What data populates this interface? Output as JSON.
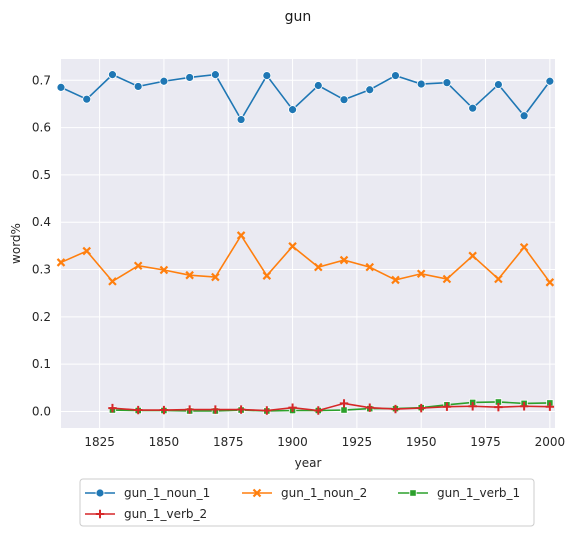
{
  "chart_data": {
    "type": "line",
    "title": "gun",
    "xlabel": "year",
    "ylabel": "word%",
    "xlim": [
      1810,
      2002
    ],
    "ylim": [
      -0.035,
      0.745
    ],
    "x_ticks": [
      1825,
      1850,
      1875,
      1900,
      1925,
      1950,
      1975,
      2000
    ],
    "y_ticks": [
      0.0,
      0.1,
      0.2,
      0.3,
      0.4,
      0.5,
      0.6,
      0.7
    ],
    "grid": true,
    "legend_position": "bottom-center",
    "series": [
      {
        "name": "gun_1_noun_1",
        "color": "#1f77b4",
        "marker": "circle",
        "x": [
          1810,
          1820,
          1830,
          1840,
          1850,
          1860,
          1870,
          1880,
          1890,
          1900,
          1910,
          1920,
          1930,
          1940,
          1950,
          1960,
          1970,
          1980,
          1990,
          2000
        ],
        "y": [
          0.685,
          0.66,
          0.712,
          0.687,
          0.698,
          0.706,
          0.712,
          0.617,
          0.71,
          0.638,
          0.689,
          0.659,
          0.68,
          0.71,
          0.692,
          0.695,
          0.641,
          0.691,
          0.625,
          0.698
        ]
      },
      {
        "name": "gun_1_noun_2",
        "color": "#ff7f0e",
        "marker": "x",
        "x": [
          1810,
          1820,
          1830,
          1840,
          1850,
          1860,
          1870,
          1880,
          1890,
          1900,
          1910,
          1920,
          1930,
          1940,
          1950,
          1960,
          1970,
          1980,
          1990,
          2000
        ],
        "y": [
          0.315,
          0.339,
          0.275,
          0.308,
          0.299,
          0.288,
          0.284,
          0.372,
          0.287,
          0.349,
          0.305,
          0.32,
          0.305,
          0.278,
          0.291,
          0.28,
          0.329,
          0.28,
          0.347,
          0.273
        ]
      },
      {
        "name": "gun_1_verb_1",
        "color": "#2ca02c",
        "marker": "square",
        "x": [
          1830,
          1840,
          1850,
          1860,
          1870,
          1880,
          1890,
          1900,
          1910,
          1920,
          1930,
          1940,
          1950,
          1960,
          1970,
          1980,
          1990,
          2000
        ],
        "y": [
          0.003,
          0.002,
          0.002,
          0.001,
          0.001,
          0.003,
          0.001,
          0.002,
          0.002,
          0.003,
          0.006,
          0.006,
          0.008,
          0.014,
          0.019,
          0.02,
          0.017,
          0.018
        ]
      },
      {
        "name": "gun_1_verb_2",
        "color": "#d62728",
        "marker": "plus",
        "x": [
          1830,
          1840,
          1850,
          1860,
          1870,
          1880,
          1890,
          1900,
          1910,
          1920,
          1930,
          1940,
          1950,
          1960,
          1970,
          1980,
          1990,
          2000
        ],
        "y": [
          0.007,
          0.003,
          0.003,
          0.004,
          0.004,
          0.004,
          0.002,
          0.008,
          0.002,
          0.017,
          0.008,
          0.005,
          0.007,
          0.01,
          0.011,
          0.009,
          0.011,
          0.01
        ]
      }
    ]
  }
}
